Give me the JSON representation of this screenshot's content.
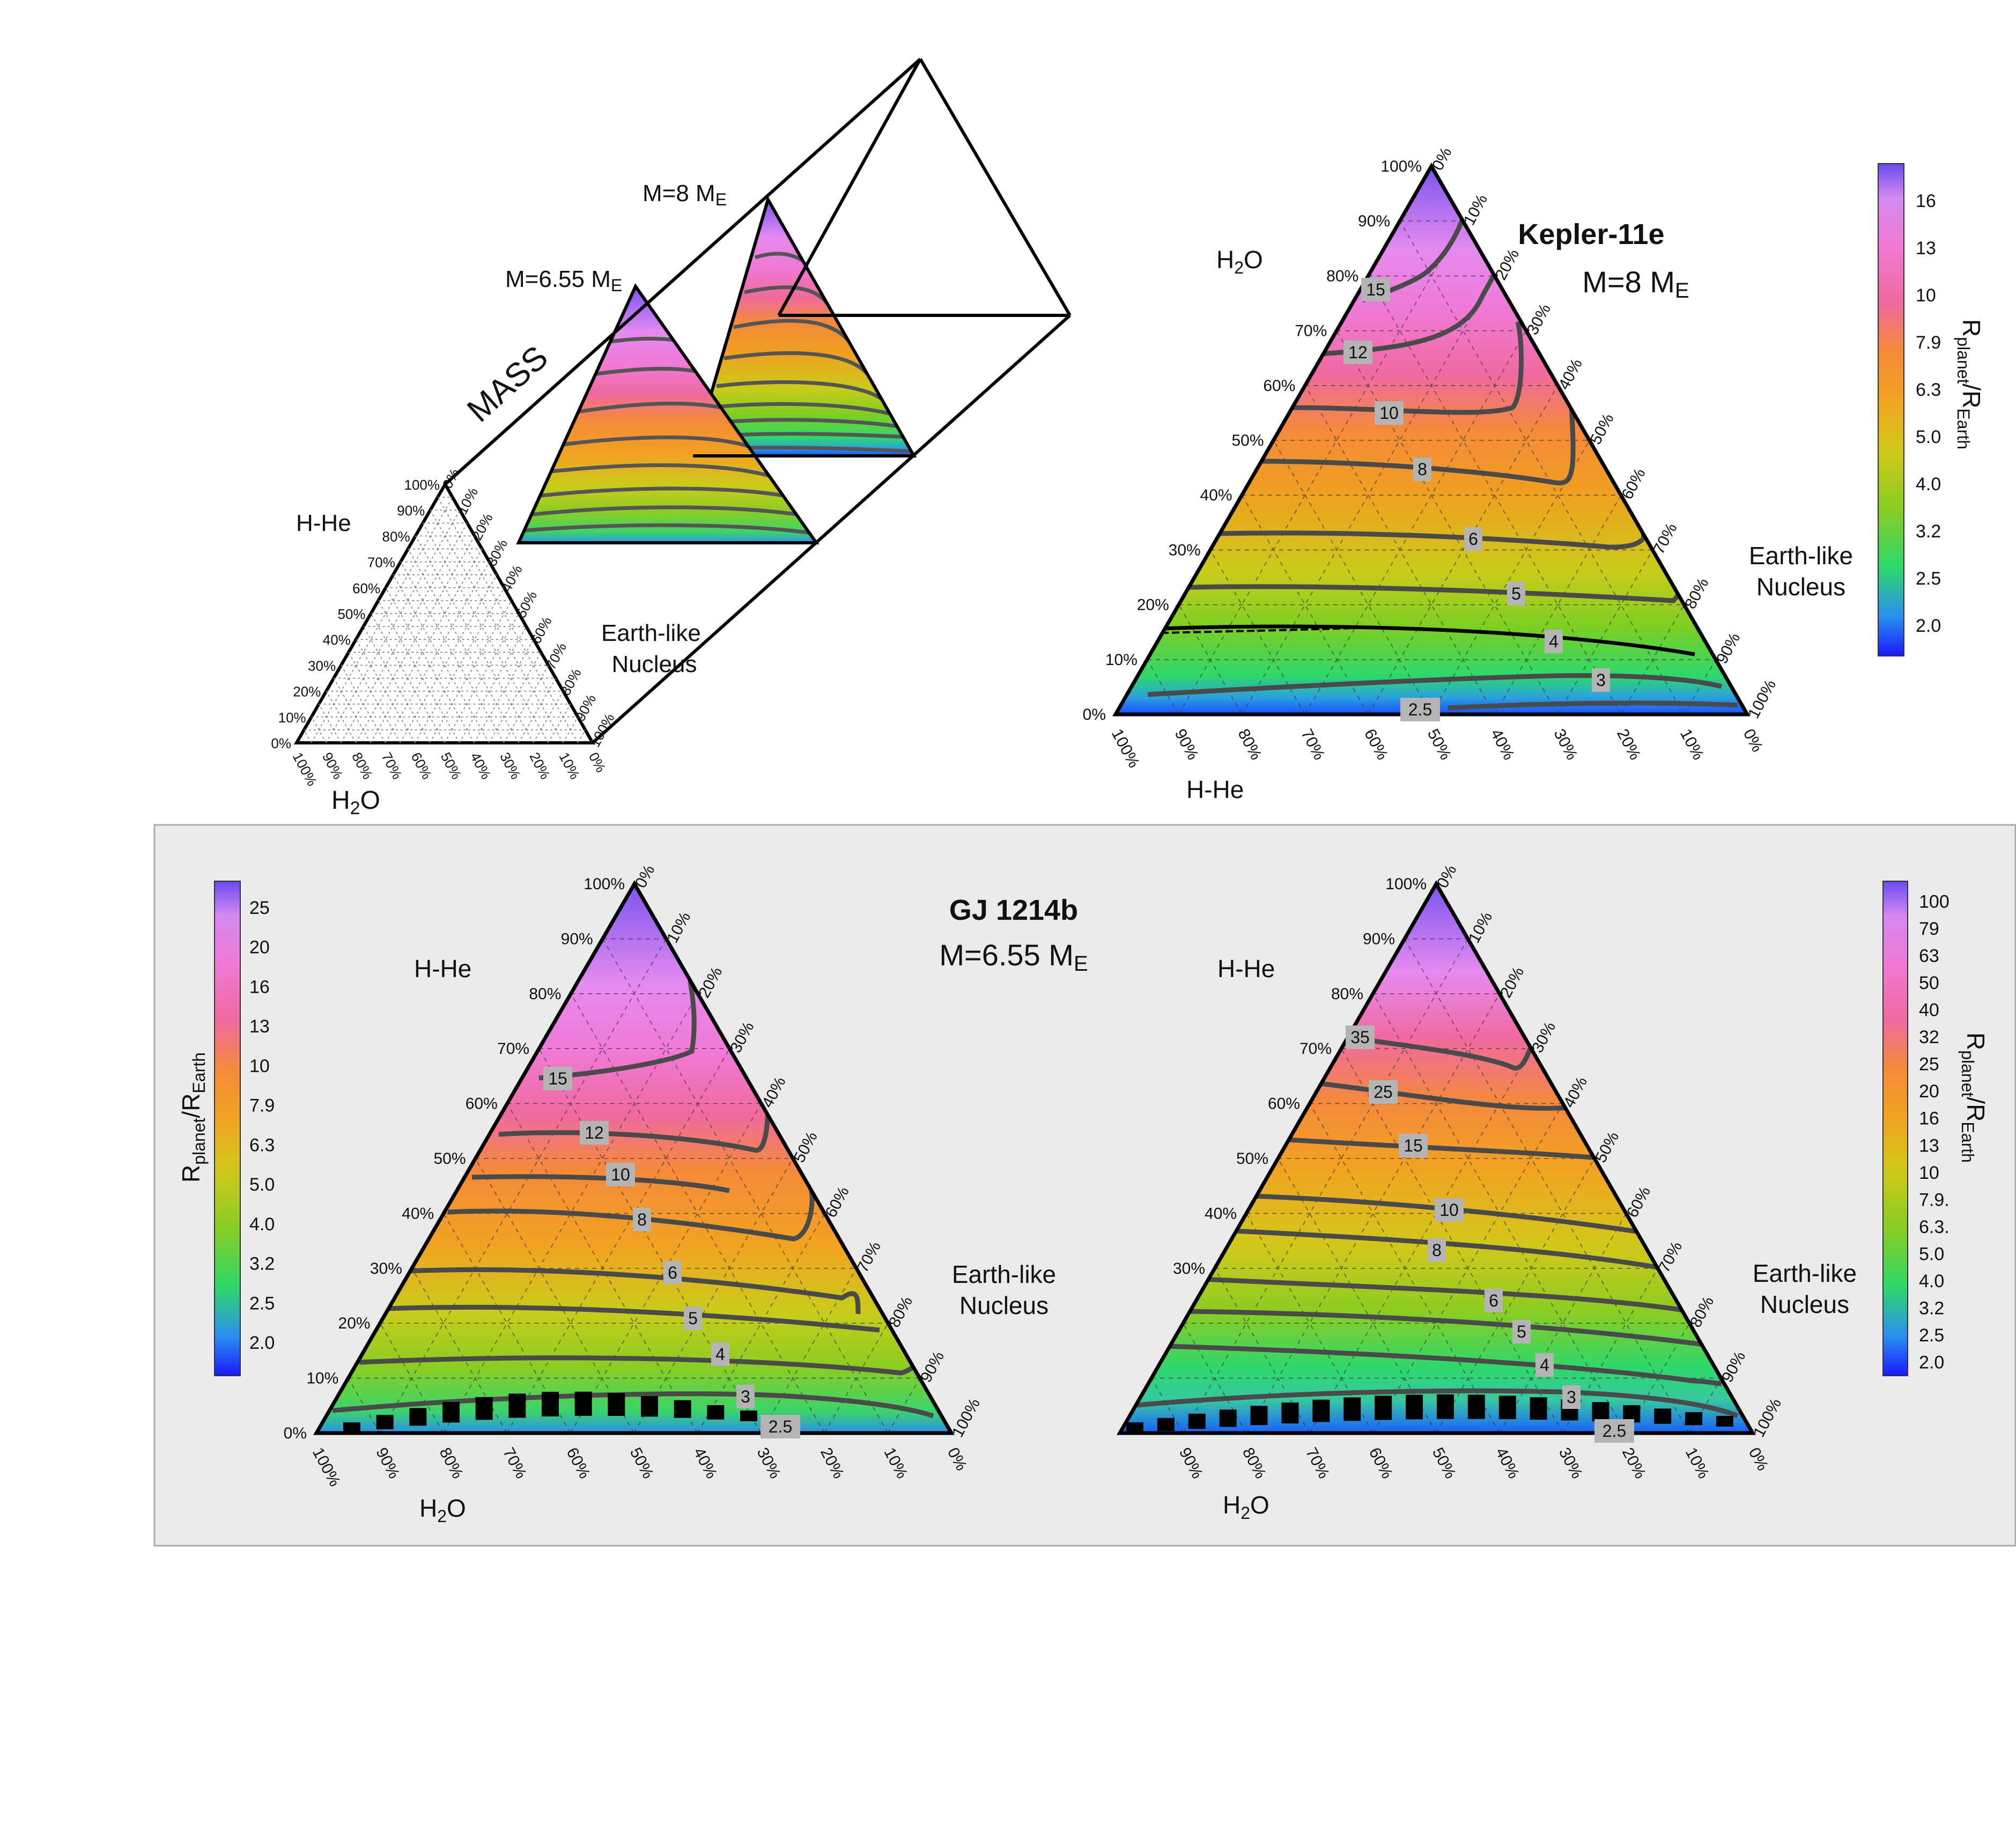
{
  "figure": {
    "schematic": {
      "mass_axis_label": "MASS",
      "slice_labels": [
        {
          "main": "M=6.55 M",
          "sub": "E"
        },
        {
          "main": "M=8 M",
          "sub": "E"
        }
      ],
      "left_vertex_label": "H-He",
      "right_vertex_label": "Earth-like\nNucleus",
      "bottom_label": "H2O"
    },
    "colorbar_label": {
      "main": "R",
      "sub1": "planet",
      "slash": "/R",
      "sub2": "Earth"
    },
    "panels_box_background": "#ebebeb"
  },
  "chart_data": [
    {
      "id": "kepler11e",
      "type": "heatmap",
      "subtype": "ternary-contour",
      "title": "Kepler-11e",
      "subtitle_main": "M=8 M",
      "subtitle_sub": "E",
      "top_vertex_label": "H2O",
      "bottom_axis_label": "H-He",
      "right_vertex_label": "Earth-like\nNucleus",
      "left_edge_ticks": [
        "0%",
        "10%",
        "20%",
        "30%",
        "40%",
        "50%",
        "60%",
        "70%",
        "80%",
        "90%",
        "100%"
      ],
      "right_edge_ticks": [
        "0%",
        "10%",
        "20%",
        "30%",
        "40%",
        "50%",
        "60%",
        "70%",
        "80%",
        "90%",
        "100%"
      ],
      "bottom_edge_ticks": [
        "100%",
        "90%",
        "80%",
        "70%",
        "60%",
        "50%",
        "40%",
        "30%",
        "20%",
        "10%",
        "0%"
      ],
      "contour_levels": [
        "2.5",
        "3",
        "4",
        "5",
        "6",
        "8",
        "10",
        "12",
        "15"
      ],
      "colorbar_ticks": [
        "2.0",
        "2.5",
        "3.2",
        "4.0",
        "5.0",
        "6.3",
        "7.9",
        "10",
        "13",
        "16"
      ],
      "colorbar_range": [
        1.8,
        18
      ]
    },
    {
      "id": "gj1214b_a",
      "type": "heatmap",
      "subtype": "ternary-contour",
      "title": "GJ 1214b",
      "subtitle_main": "M=6.55 M",
      "subtitle_sub": "E",
      "top_vertex_label": "H-He",
      "bottom_axis_label": "H2O",
      "right_vertex_label": "Earth-like\nNucleus",
      "left_edge_ticks": [
        "0%",
        "10%",
        "20%",
        "30%",
        "40%",
        "50%",
        "60%",
        "70%",
        "80%",
        "90%",
        "100%"
      ],
      "right_edge_ticks": [
        "0%",
        "10%",
        "20%",
        "30%",
        "40%",
        "50%",
        "60%",
        "70%",
        "80%",
        "90%",
        "100%"
      ],
      "bottom_edge_ticks": [
        "100%",
        "90%",
        "80%",
        "70%",
        "60%",
        "50%",
        "40%",
        "30%",
        "20%",
        "10%",
        "0%"
      ],
      "contour_levels": [
        "2.5",
        "3",
        "4",
        "5",
        "6",
        "8",
        "10",
        "12",
        "15"
      ],
      "colorbar_ticks": [
        "2.0",
        "2.5",
        "3.2",
        "4.0",
        "5.0",
        "6.3",
        "7.9",
        "10",
        "13",
        "16",
        "20",
        "25"
      ],
      "colorbar_range": [
        1.8,
        25
      ]
    },
    {
      "id": "gj1214b_b",
      "type": "heatmap",
      "subtype": "ternary-contour",
      "title": "",
      "top_vertex_label": "H-He",
      "bottom_axis_label": "H2O",
      "right_vertex_label": "Earth-like\nNucleus",
      "left_edge_ticks": [
        "30%",
        "40%",
        "50%",
        "60%",
        "70%",
        "80%",
        "90%",
        "100%"
      ],
      "right_edge_ticks": [
        "0%",
        "10%",
        "20%",
        "30%",
        "40%",
        "50%",
        "60%",
        "70%",
        "80%",
        "90%",
        "100%"
      ],
      "bottom_edge_ticks": [
        "90%",
        "80%",
        "70%",
        "60%",
        "50%",
        "40%",
        "30%",
        "20%",
        "10%",
        "0%"
      ],
      "contour_levels": [
        "2.5",
        "3",
        "4",
        "5",
        "6",
        "8",
        "10",
        "15",
        "25",
        "35"
      ],
      "colorbar_ticks": [
        "2.0",
        "2.5",
        "3.2",
        "4.0",
        "5.0",
        "6.3.",
        "7.9.",
        "10",
        "13",
        "16",
        "20",
        "25",
        "32",
        "40",
        "50",
        "63",
        "79",
        "100"
      ],
      "colorbar_range": [
        1.8,
        100
      ]
    }
  ]
}
